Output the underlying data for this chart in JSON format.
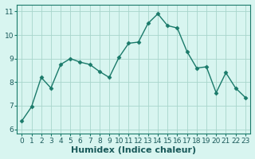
{
  "x": [
    0,
    1,
    2,
    3,
    4,
    5,
    6,
    7,
    8,
    9,
    10,
    11,
    12,
    13,
    14,
    15,
    16,
    17,
    18,
    19,
    20,
    21,
    22,
    23
  ],
  "y": [
    6.35,
    6.95,
    8.2,
    7.75,
    8.75,
    9.0,
    8.85,
    8.75,
    8.45,
    8.2,
    9.05,
    9.65,
    9.7,
    10.5,
    10.9,
    10.4,
    10.3,
    9.3,
    8.6,
    8.65,
    7.55,
    8.4,
    7.75,
    7.35
  ],
  "line_color": "#1a7a6a",
  "marker": "D",
  "marker_size": 2.5,
  "line_width": 1.0,
  "bg_color": "#d8f5f0",
  "grid_color": "#a8d5cc",
  "xlabel": "Humidex (Indice chaleur)",
  "xlabel_fontsize": 8,
  "xlim": [
    -0.5,
    23.5
  ],
  "ylim": [
    5.8,
    11.3
  ],
  "yticks": [
    6,
    7,
    8,
    9,
    10,
    11
  ],
  "xticks": [
    0,
    1,
    2,
    3,
    4,
    5,
    6,
    7,
    8,
    9,
    10,
    11,
    12,
    13,
    14,
    15,
    16,
    17,
    18,
    19,
    20,
    21,
    22,
    23
  ],
  "tick_fontsize": 6.5,
  "label_color": "#1a5a5a",
  "spine_color": "#1a7a6a"
}
